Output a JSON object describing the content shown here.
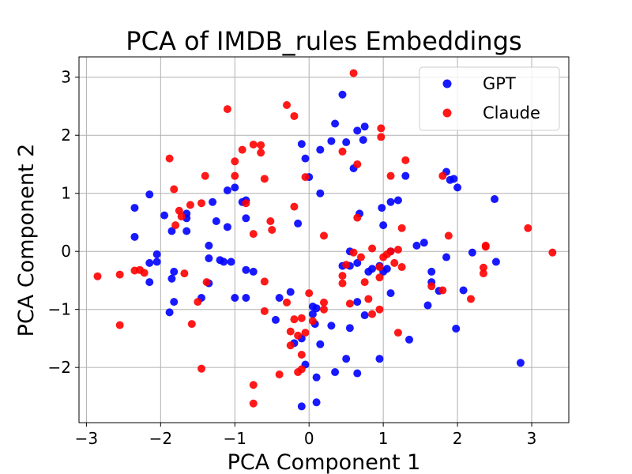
{
  "chart_data": {
    "type": "scatter",
    "title": "PCA of IMDB_rules Embeddings",
    "xlabel": "PCA Component 1",
    "ylabel": "PCA Component 2",
    "xlim": [
      -3.1,
      3.5
    ],
    "ylim": [
      -2.95,
      3.35
    ],
    "xticks": [
      -3,
      -2,
      -1,
      0,
      1,
      2,
      3
    ],
    "yticks": [
      -2,
      -1,
      0,
      1,
      2,
      3
    ],
    "xtick_labels": [
      "−3",
      "−2",
      "−1",
      "0",
      "1",
      "2",
      "3"
    ],
    "ytick_labels": [
      "−2",
      "−1",
      "0",
      "1",
      "2",
      "3"
    ],
    "grid": true,
    "legend": "top-right",
    "series": [
      {
        "name": "GPT",
        "color": "#0000ff",
        "points": [
          [
            -2.35,
            0.75
          ],
          [
            -2.35,
            0.25
          ],
          [
            -2.15,
            0.98
          ],
          [
            -1.95,
            0.62
          ],
          [
            -2.05,
            -0.18
          ],
          [
            -2.15,
            -0.2
          ],
          [
            -2.15,
            -0.53
          ],
          [
            -2.05,
            -0.05
          ],
          [
            -1.85,
            0.35
          ],
          [
            -1.65,
            0.35
          ],
          [
            -1.65,
            0.57
          ],
          [
            -1.65,
            0.65
          ],
          [
            -1.85,
            -0.47
          ],
          [
            -1.82,
            -0.35
          ],
          [
            -1.82,
            -0.87
          ],
          [
            -1.88,
            -1.05
          ],
          [
            -1.35,
            0.1
          ],
          [
            -1.35,
            -0.12
          ],
          [
            -1.25,
            0.52
          ],
          [
            -1.3,
            0.85
          ],
          [
            -1.2,
            -0.15
          ],
          [
            -1.15,
            -0.18
          ],
          [
            -1.05,
            -0.18
          ],
          [
            -1.1,
            0.42
          ],
          [
            -1.1,
            1.05
          ],
          [
            -1.0,
            1.1
          ],
          [
            -0.9,
            0.85
          ],
          [
            -0.85,
            0.88
          ],
          [
            -0.85,
            0.57
          ],
          [
            -0.85,
            -0.32
          ],
          [
            -0.75,
            -0.35
          ],
          [
            -0.85,
            -0.8
          ],
          [
            -1.0,
            -0.8
          ],
          [
            -1.35,
            -0.55
          ],
          [
            -1.45,
            -0.8
          ],
          [
            -0.45,
            -1.18
          ],
          [
            -0.4,
            -0.8
          ],
          [
            -0.25,
            -0.7
          ],
          [
            -0.2,
            -1.58
          ],
          [
            -0.1,
            -1.5
          ],
          [
            -0.05,
            -1.95
          ],
          [
            0.05,
            -1.08
          ],
          [
            0.05,
            -0.95
          ],
          [
            0.1,
            -0.98
          ],
          [
            0.08,
            -1.25
          ],
          [
            0.15,
            -1.6
          ],
          [
            0.1,
            -2.17
          ],
          [
            0.1,
            -2.6
          ],
          [
            -0.1,
            -2.67
          ],
          [
            0.3,
            -1.28
          ],
          [
            0.35,
            -2.08
          ],
          [
            0.5,
            -1.85
          ],
          [
            0.55,
            -1.32
          ],
          [
            0.65,
            -2.1
          ],
          [
            0.65,
            -0.87
          ],
          [
            0.75,
            -1.1
          ],
          [
            0.95,
            -1.85
          ],
          [
            1.0,
            -0.35
          ],
          [
            1.1,
            -0.72
          ],
          [
            0.55,
            -0.25
          ],
          [
            0.45,
            -0.25
          ],
          [
            0.65,
            -0.2
          ],
          [
            0.55,
            0.0
          ],
          [
            0.8,
            -0.35
          ],
          [
            0.95,
            -0.25
          ],
          [
            1.1,
            0.0
          ],
          [
            1.2,
            0.88
          ],
          [
            1.1,
            0.85
          ],
          [
            0.98,
            0.75
          ],
          [
            0.68,
            0.65
          ],
          [
            1.0,
            0.45
          ],
          [
            0.6,
            1.43
          ],
          [
            0.3,
            1.9
          ],
          [
            0.35,
            2.2
          ],
          [
            0.45,
            2.7
          ],
          [
            0.5,
            1.88
          ],
          [
            0.65,
            2.08
          ],
          [
            0.75,
            2.15
          ],
          [
            0.73,
            1.92
          ],
          [
            0.15,
            1.75
          ],
          [
            0.15,
            1.0
          ],
          [
            0.0,
            1.28
          ],
          [
            -0.05,
            1.6
          ],
          [
            -0.15,
            0.48
          ],
          [
            -0.1,
            1.85
          ],
          [
            1.3,
            1.3
          ],
          [
            1.35,
            -1.52
          ],
          [
            1.45,
            0.1
          ],
          [
            1.55,
            0.15
          ],
          [
            1.6,
            -0.93
          ],
          [
            1.65,
            -0.35
          ],
          [
            1.65,
            -0.53
          ],
          [
            1.75,
            -0.68
          ],
          [
            1.85,
            -0.1
          ],
          [
            1.85,
            1.37
          ],
          [
            1.9,
            1.23
          ],
          [
            1.95,
            1.25
          ],
          [
            2.0,
            1.1
          ],
          [
            1.98,
            -1.33
          ],
          [
            2.08,
            -0.67
          ],
          [
            2.2,
            -0.02
          ],
          [
            2.5,
            0.9
          ],
          [
            2.52,
            -0.18
          ],
          [
            2.85,
            -1.92
          ],
          [
            1.05,
            -0.3
          ],
          [
            0.85,
            -0.3
          ]
        ]
      },
      {
        "name": "Claude",
        "color": "#ff0000",
        "points": [
          [
            -2.85,
            -0.43
          ],
          [
            -2.55,
            -0.4
          ],
          [
            -2.55,
            -1.27
          ],
          [
            -2.35,
            -0.33
          ],
          [
            -2.28,
            -0.32
          ],
          [
            -2.22,
            -0.37
          ],
          [
            -1.88,
            1.6
          ],
          [
            -1.82,
            1.07
          ],
          [
            -1.8,
            0.45
          ],
          [
            -1.75,
            0.7
          ],
          [
            -1.72,
            0.6
          ],
          [
            -1.68,
            -0.38
          ],
          [
            -1.6,
            0.8
          ],
          [
            -1.58,
            -1.25
          ],
          [
            -1.5,
            -0.87
          ],
          [
            -1.45,
            0.83
          ],
          [
            -1.45,
            -2.02
          ],
          [
            -1.4,
            1.3
          ],
          [
            -1.38,
            -0.53
          ],
          [
            -1.1,
            2.45
          ],
          [
            -1.0,
            1.55
          ],
          [
            -1.0,
            1.3
          ],
          [
            -0.9,
            1.75
          ],
          [
            -0.85,
            0.83
          ],
          [
            -0.75,
            1.84
          ],
          [
            -0.75,
            0.3
          ],
          [
            -0.65,
            1.83
          ],
          [
            -0.65,
            1.7
          ],
          [
            -0.6,
            1.25
          ],
          [
            -0.6,
            -0.52
          ],
          [
            -0.52,
            0.52
          ],
          [
            -0.5,
            0.37
          ],
          [
            -0.6,
            -1.03
          ],
          [
            -0.75,
            -2.3
          ],
          [
            -0.75,
            -2.62
          ],
          [
            -0.4,
            -2.12
          ],
          [
            -0.3,
            2.52
          ],
          [
            -0.2,
            2.33
          ],
          [
            -0.2,
            0.77
          ],
          [
            -0.3,
            -0.88
          ],
          [
            -0.25,
            -1.38
          ],
          [
            -0.25,
            -1.62
          ],
          [
            -0.2,
            -1.17
          ],
          [
            -0.15,
            -1.45
          ],
          [
            -0.1,
            -1.15
          ],
          [
            -0.05,
            -1.4
          ],
          [
            -0.1,
            -1.78
          ],
          [
            -0.1,
            -2.03
          ],
          [
            -0.15,
            -2.08
          ],
          [
            -0.05,
            1.28
          ],
          [
            0.0,
            -0.72
          ],
          [
            0.05,
            -1.2
          ],
          [
            0.2,
            -0.88
          ],
          [
            0.2,
            -1.0
          ],
          [
            0.2,
            0.27
          ],
          [
            0.45,
            -0.42
          ],
          [
            0.45,
            -0.55
          ],
          [
            0.5,
            -0.23
          ],
          [
            0.55,
            -0.9
          ],
          [
            0.45,
            1.72
          ],
          [
            0.6,
            3.07
          ],
          [
            0.6,
            -0.02
          ],
          [
            0.65,
            1.5
          ],
          [
            0.65,
            0.58
          ],
          [
            0.7,
            -0.1
          ],
          [
            0.75,
            -0.53
          ],
          [
            0.8,
            -0.82
          ],
          [
            0.85,
            0.05
          ],
          [
            0.85,
            -1.08
          ],
          [
            0.95,
            -0.45
          ],
          [
            0.95,
            -0.27
          ],
          [
            0.95,
            -1.0
          ],
          [
            0.97,
            2.12
          ],
          [
            0.97,
            1.97
          ],
          [
            1.0,
            -0.1
          ],
          [
            1.05,
            -0.05
          ],
          [
            1.1,
            1.3
          ],
          [
            1.1,
            0.0
          ],
          [
            1.15,
            -0.2
          ],
          [
            1.2,
            0.03
          ],
          [
            1.2,
            -1.4
          ],
          [
            1.25,
            0.4
          ],
          [
            1.25,
            -0.27
          ],
          [
            1.3,
            1.57
          ],
          [
            1.65,
            -0.6
          ],
          [
            1.8,
            1.3
          ],
          [
            1.8,
            -0.67
          ],
          [
            1.88,
            0.27
          ],
          [
            2.18,
            -0.82
          ],
          [
            2.35,
            -0.38
          ],
          [
            2.35,
            -0.28
          ],
          [
            2.38,
            0.08
          ],
          [
            2.38,
            0.1
          ],
          [
            2.95,
            0.4
          ],
          [
            3.28,
            -0.02
          ]
        ]
      }
    ]
  }
}
